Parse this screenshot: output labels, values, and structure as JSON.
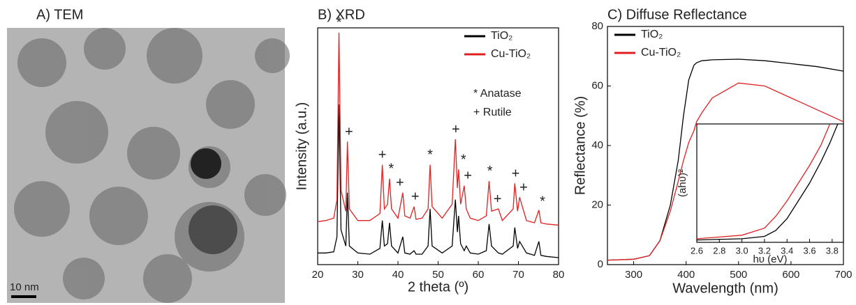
{
  "chart_data": [
    {
      "type": "image",
      "title": "A) TEM",
      "scale_bar_label": "10 nm"
    },
    {
      "type": "line",
      "title": "B) XRD",
      "xlabel": "2 theta (º)",
      "ylabel": "Intensity (a.u.)",
      "xlim": [
        20,
        80
      ],
      "xticks": [
        20,
        30,
        40,
        50,
        60,
        70,
        80
      ],
      "ylim": [
        0,
        10.2
      ],
      "legend": "upper right",
      "x": [
        20,
        22,
        24,
        24.8,
        25.3,
        25.8,
        27,
        27.4,
        27.9,
        30,
        33,
        35.5,
        36.1,
        36.6,
        37.4,
        37.9,
        38.4,
        40,
        41.2,
        41.7,
        43,
        44,
        44.5,
        46,
        47.5,
        48,
        48.5,
        51,
        53.5,
        54.3,
        54.8,
        55.1,
        55.6,
        56.5,
        57,
        58,
        60,
        62,
        62.7,
        63.3,
        65,
        66,
        68.7,
        69.1,
        69.8,
        70.3,
        72,
        74,
        75.1,
        75.6,
        77,
        80
      ],
      "series": [
        {
          "name": "TiO₂",
          "color": "#000000",
          "values": [
            0.5,
            0.5,
            0.55,
            1.2,
            6.9,
            1.5,
            0.8,
            3.1,
            0.8,
            0.5,
            0.45,
            0.7,
            1.9,
            0.8,
            0.9,
            1.8,
            0.8,
            0.5,
            1.2,
            0.5,
            0.45,
            0.6,
            0.45,
            0.45,
            0.8,
            2.4,
            0.8,
            0.5,
            0.8,
            2.8,
            1.4,
            2.1,
            0.9,
            0.6,
            0.8,
            0.5,
            0.45,
            0.6,
            1.75,
            0.8,
            0.5,
            0.45,
            0.8,
            1.6,
            0.7,
            1.0,
            0.5,
            0.4,
            1.0,
            0.4,
            0.35,
            0.3
          ]
        },
        {
          "name": "Cu-TiO₂",
          "color": "#e02020",
          "values": [
            1.85,
            1.9,
            2.0,
            2.8,
            10.0,
            3.2,
            2.3,
            5.3,
            2.4,
            1.9,
            1.9,
            2.2,
            4.3,
            2.4,
            2.6,
            3.7,
            2.4,
            2.0,
            3.1,
            2.1,
            2.0,
            2.5,
            1.95,
            2.0,
            2.4,
            4.3,
            2.5,
            2.0,
            2.6,
            5.4,
            3.3,
            4.1,
            2.6,
            3.4,
            2.4,
            2.0,
            1.9,
            2.1,
            3.6,
            2.3,
            2.4,
            1.9,
            2.4,
            3.5,
            2.3,
            2.9,
            1.9,
            1.8,
            2.35,
            1.8,
            1.75,
            1.7
          ]
        }
      ],
      "annotations": [
        {
          "text": "*",
          "x": 25.3,
          "y": 10.4
        },
        {
          "text": "+",
          "x": 27.8,
          "y": 5.7
        },
        {
          "text": "+",
          "x": 36.1,
          "y": 4.7
        },
        {
          "text": "*",
          "x": 38.3,
          "y": 4.1
        },
        {
          "text": "+",
          "x": 40.5,
          "y": 3.5
        },
        {
          "text": "+",
          "x": 44.3,
          "y": 2.9
        },
        {
          "text": "*",
          "x": 48,
          "y": 4.7
        },
        {
          "text": "+",
          "x": 54.4,
          "y": 5.8
        },
        {
          "text": "*",
          "x": 56.3,
          "y": 4.5
        },
        {
          "text": "+",
          "x": 57.4,
          "y": 3.8
        },
        {
          "text": "*",
          "x": 62.9,
          "y": 4.0
        },
        {
          "text": "+",
          "x": 64.8,
          "y": 2.8
        },
        {
          "text": "+",
          "x": 69.3,
          "y": 3.9
        },
        {
          "text": "+",
          "x": 71.3,
          "y": 3.3
        },
        {
          "text": "*",
          "x": 76,
          "y": 2.7
        }
      ],
      "marker_legend": [
        "* Anatase",
        "+ Rutile"
      ]
    },
    {
      "type": "line",
      "title": "C) Diffuse Reflectance",
      "xlabel": "Wavelength (nm)",
      "ylabel": "Reflectance (%)",
      "xlim": [
        250,
        700
      ],
      "xticks": [
        300,
        400,
        500,
        600,
        700
      ],
      "ylim": [
        0,
        80
      ],
      "yticks": [
        0,
        20,
        40,
        60,
        80
      ],
      "legend": "upper left",
      "x": [
        250,
        300,
        330,
        350,
        370,
        385,
        395,
        400,
        405,
        415,
        420,
        430,
        450,
        500,
        550,
        600,
        650,
        700
      ],
      "series": [
        {
          "name": "TiO₂",
          "color": "#000000",
          "values": [
            1.5,
            1.8,
            3,
            8,
            20,
            35,
            50,
            56,
            62,
            67,
            67.8,
            68.5,
            68.8,
            69,
            68.5,
            67.5,
            66.5,
            65
          ]
        },
        {
          "name": "Cu-TiO₂",
          "color": "#e02020",
          "values": [
            1.5,
            1.8,
            3,
            8,
            18,
            28,
            35,
            38,
            41,
            45,
            48,
            51,
            56,
            61,
            60,
            56,
            52,
            48
          ]
        }
      ],
      "inset": {
        "type": "line",
        "xlabel": "hυ (eV)",
        "ylabel": "(ahυ)²",
        "xlim": [
          2.6,
          3.9
        ],
        "xticks": [
          2.6,
          2.8,
          {
            "value": 3,
            "label": "3.0"
          },
          3.2,
          3.4,
          3.6,
          3.8
        ],
        "ylim": [
          0,
          1
        ],
        "x": [
          2.6,
          3.0,
          3.2,
          3.3,
          3.4,
          3.5,
          3.6,
          3.7,
          3.78,
          3.85
        ],
        "series": [
          {
            "name": "TiO₂",
            "color": "#000000",
            "values": [
              0.02,
              0.03,
              0.05,
              0.1,
              0.2,
              0.35,
              0.5,
              0.68,
              0.84,
              1.0
            ]
          },
          {
            "name": "Cu-TiO₂",
            "color": "#e02020",
            "values": [
              0.03,
              0.06,
              0.12,
              0.22,
              0.35,
              0.5,
              0.65,
              0.82,
              1.0,
              null
            ]
          }
        ]
      }
    }
  ]
}
